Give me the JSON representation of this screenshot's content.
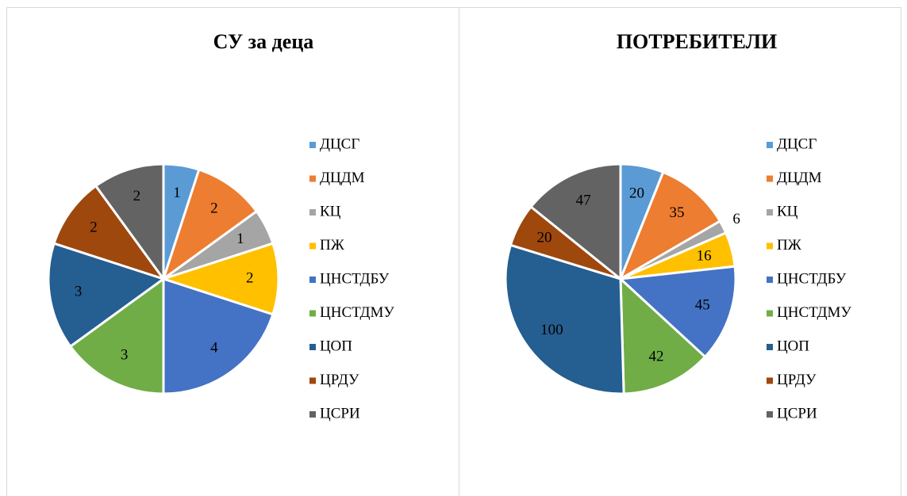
{
  "chart_data": [
    {
      "type": "pie",
      "title": "СУ за деца",
      "categories": [
        "ДЦСГ",
        "ДЦДМ",
        "КЦ",
        "ПЖ",
        "ЦНСТДБУ",
        "ЦНСТДМУ",
        "ЦОП",
        "ЦРДУ",
        "ЦСРИ"
      ],
      "values": [
        1,
        2,
        1,
        2,
        4,
        3,
        3,
        2,
        2
      ],
      "colors": [
        "#5b9bd5",
        "#ed7d31",
        "#a5a5a5",
        "#ffc000",
        "#4472c4",
        "#70ad47",
        "#255e91",
        "#9e480e",
        "#636363"
      ],
      "legend": "right"
    },
    {
      "type": "pie",
      "title": "ПОТРЕБИТЕЛИ",
      "categories": [
        "ДЦСГ",
        "ДЦДМ",
        "КЦ",
        "ПЖ",
        "ЦНСТДБУ",
        "ЦНСТДМУ",
        "ЦОП",
        "ЦРДУ",
        "ЦСРИ"
      ],
      "values": [
        20,
        35,
        6,
        16,
        45,
        42,
        100,
        20,
        47
      ],
      "colors": [
        "#5b9bd5",
        "#ed7d31",
        "#a5a5a5",
        "#ffc000",
        "#4472c4",
        "#70ad47",
        "#255e91",
        "#9e480e",
        "#636363"
      ],
      "legend": "right"
    }
  ]
}
